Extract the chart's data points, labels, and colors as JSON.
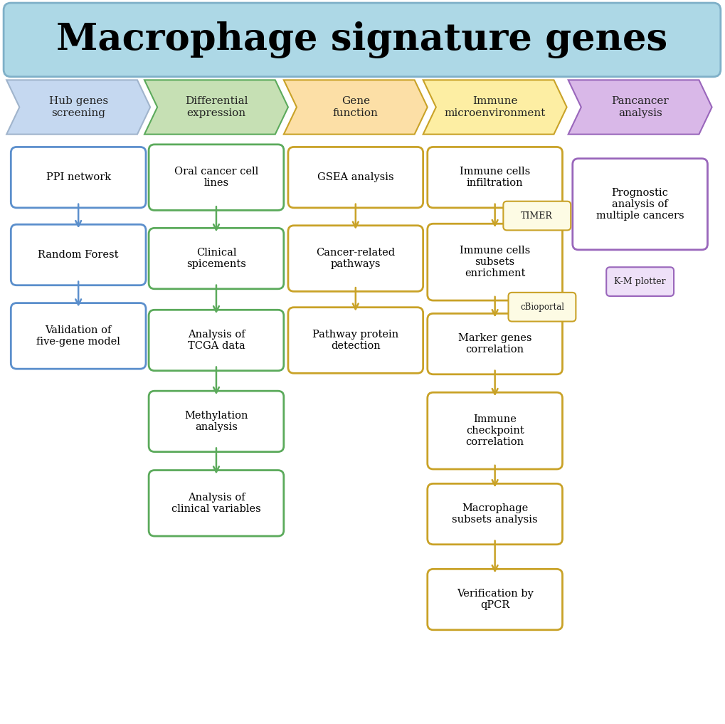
{
  "title": "Macrophage signature genes",
  "title_bg": "#ADD8E6",
  "title_border": "#7FB0C8",
  "title_fontsize": 38,
  "chevron_labels": [
    "Hub genes\nscreening",
    "Differential\nexpression",
    "Gene\nfunction",
    "Immune\nmicroenvironment",
    "Pancancer\nanalysis"
  ],
  "chevron_fills": [
    "#C5D8F0",
    "#C6E0B4",
    "#FCDFA6",
    "#FDEEA3",
    "#D9B8E8"
  ],
  "chevron_edges": [
    "#A0B4CC",
    "#5BAA5B",
    "#C9A227",
    "#C9A227",
    "#9966BB"
  ],
  "col1_color": "#5B8FCC",
  "col2_color": "#5BAA5B",
  "col3_color": "#C9A227",
  "col4_color": "#C9A227",
  "col5_color": "#9966BB",
  "col1_boxes": [
    "PPI network",
    "Random Forest",
    "Validation of\nfive-gene model"
  ],
  "col2_boxes": [
    "Oral cancer cell\nlines",
    "Clinical\nspicements",
    "Analysis of\nTCGA data",
    "Methylation\nanalysis",
    "Analysis of\nclinical variables"
  ],
  "col3_boxes": [
    "GSEA analysis",
    "Cancer-related\npathways",
    "Pathway protein\ndetection"
  ],
  "col4_boxes": [
    "Immune cells\ninfiltration",
    "Immune cells\nsubsets\nenrichment",
    "Marker genes\ncorrelation",
    "Immune\ncheckpoint\ncorrelation",
    "Macrophage\nsubsets analysis",
    "Verification by\nqPCR"
  ],
  "col5_box": "Prognostic\nanalysis of\nmultiple cancers",
  "timer_label": "TIMER",
  "cbioportal_label": "cBioportal",
  "km_label": "K-M plotter",
  "background": "#FFFFFF"
}
